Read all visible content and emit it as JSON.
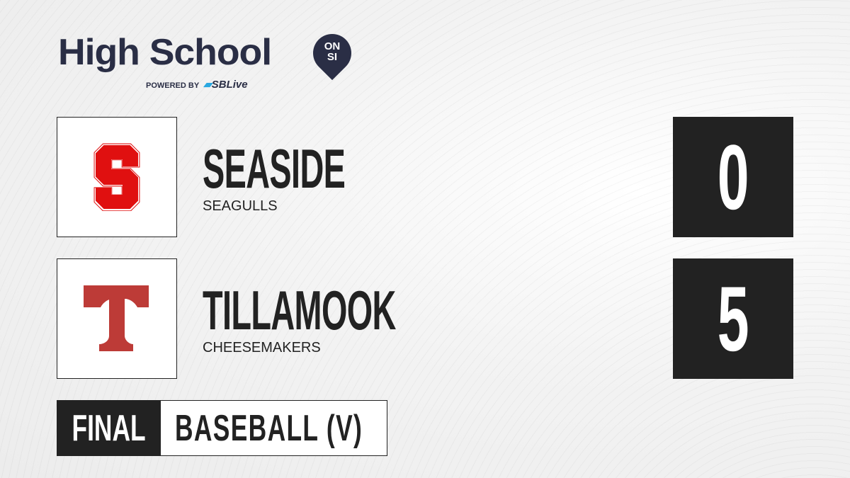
{
  "brand": {
    "title": "High School",
    "badge_top": "ON",
    "badge_bottom": "SI",
    "powered_by": "POWERED BY",
    "partner": "SBLive",
    "partner_accent": "#2aa8e0",
    "color": "#2a2e45"
  },
  "teams": [
    {
      "name": "SEASIDE",
      "mascot": "SEAGULLS",
      "logo_letter": "S",
      "logo_color": "#e01010",
      "score": "0"
    },
    {
      "name": "TILLAMOOK",
      "mascot": "CHEESEMAKERS",
      "logo_letter": "T",
      "logo_color": "#bd3b37",
      "score": "5"
    }
  ],
  "status": {
    "label": "FINAL",
    "sport": "BASEBALL (V)"
  }
}
